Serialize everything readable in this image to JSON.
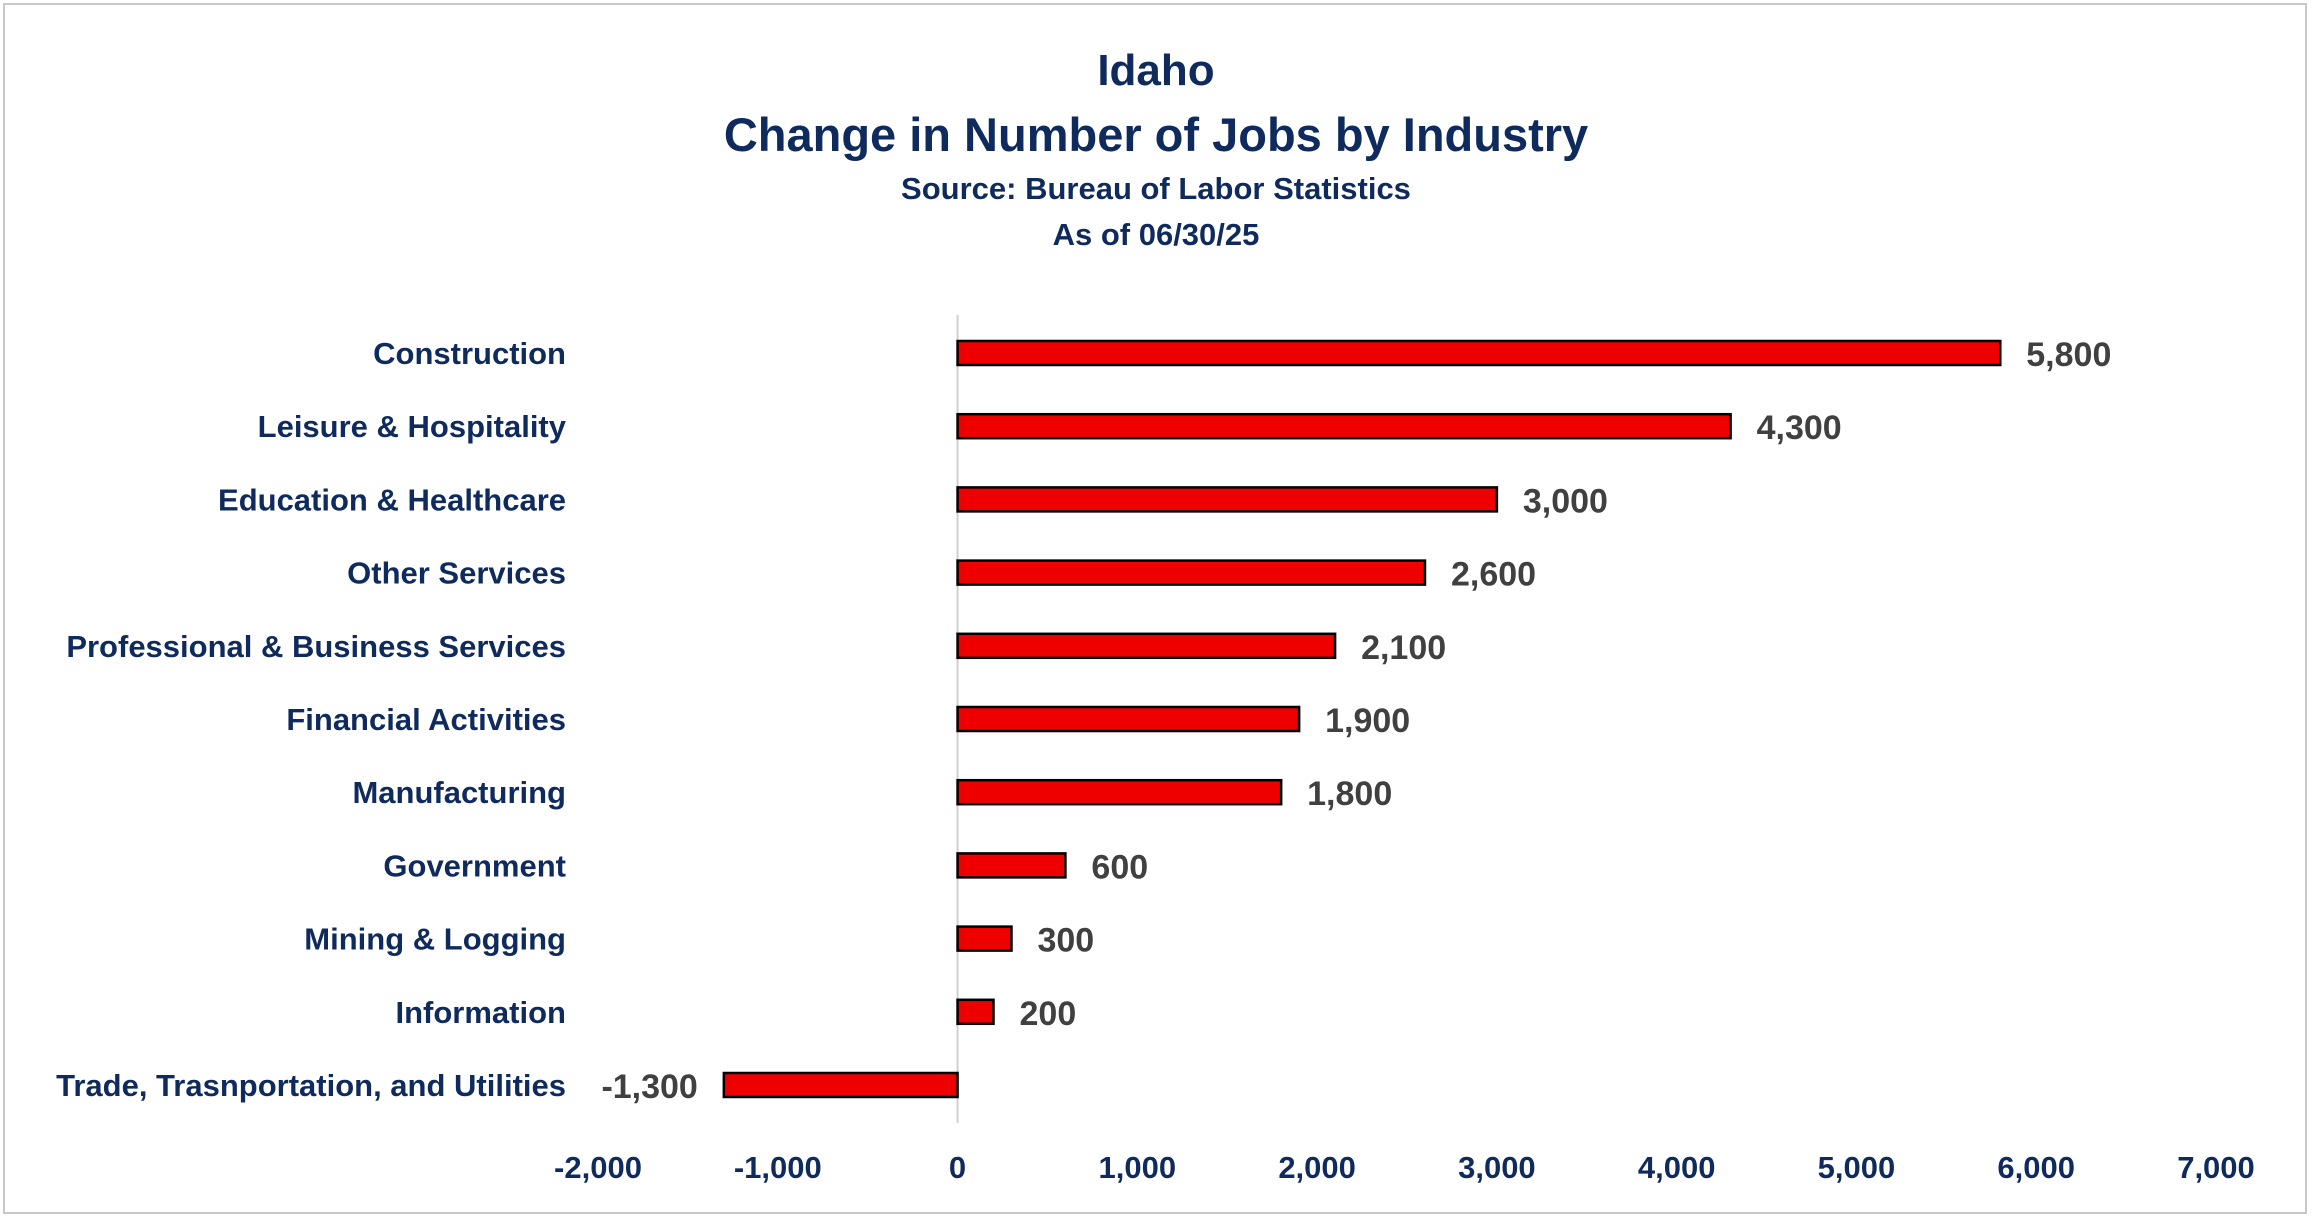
{
  "chart_data": {
    "type": "bar",
    "orientation": "horizontal",
    "title": "Idaho",
    "subtitle": "Change in Number of Jobs by Industry",
    "source": "Source: Bureau of Labor Statistics",
    "date_note": "As of 06/30/25",
    "categories": [
      "Construction",
      "Leisure & Hospitality",
      "Education & Healthcare",
      "Other Services",
      "Professional  & Business Services",
      "Financial Activities",
      "Manufacturing",
      "Government ",
      "Mining & Logging ",
      "Information",
      "Trade, Trasnportation, and Utilities"
    ],
    "values": [
      5800,
      4300,
      3000,
      2600,
      2100,
      1900,
      1800,
      600,
      300,
      200,
      -1300
    ],
    "data_labels": [
      "5,800",
      "4,300",
      "3,000",
      "2,600",
      "2,100",
      "1,900",
      "1,800",
      "600",
      "300",
      "200",
      "-1,300"
    ],
    "xlim": [
      -2000,
      7000
    ],
    "xticks": [
      -2000,
      -1000,
      0,
      1000,
      2000,
      3000,
      4000,
      5000,
      6000,
      7000
    ],
    "xtick_labels": [
      "-2,000",
      "-1,000",
      "0",
      "1,000",
      "2,000",
      "3,000",
      "4,000",
      "5,000",
      "6,000",
      "7,000"
    ],
    "xlabel": "",
    "ylabel": "",
    "grid": false,
    "legend": "none",
    "colors": {
      "bar_fill": "#ee0000",
      "bar_stroke": "#000000",
      "title_text": "#0f2a5c",
      "category_text": "#0f2a5c",
      "tick_text": "#0f2a5c",
      "value_label_text": "#404040",
      "zero_axis": "#d0d0d0"
    }
  }
}
